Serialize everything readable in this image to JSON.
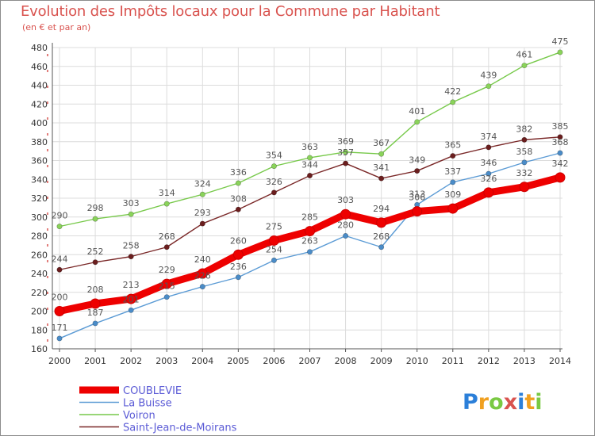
{
  "chart_data": {
    "type": "line",
    "title": "Evolution des Impôts locaux pour la Commune par Habitant",
    "subtitle": "(en € et par an)",
    "x": [
      "2000",
      "2001",
      "2002",
      "2003",
      "2004",
      "2005",
      "2006",
      "2007",
      "2008",
      "2009",
      "2010",
      "2011",
      "2012",
      "2013",
      "2014"
    ],
    "ylim": [
      160,
      480
    ],
    "yticks": [
      160,
      180,
      200,
      220,
      240,
      260,
      280,
      300,
      320,
      340,
      360,
      380,
      400,
      420,
      440,
      460,
      480
    ],
    "grid": true,
    "legend_position": "bottom-left",
    "series": [
      {
        "name": "Voiron",
        "color": "#77c94a",
        "marker_color": "#8ad35a",
        "values": [
          290,
          298,
          303,
          314,
          324,
          336,
          354,
          363,
          369,
          367,
          401,
          422,
          439,
          461,
          475
        ]
      },
      {
        "name": "Saint-Jean-de-Moirans",
        "color": "#7a2828",
        "marker_color": "#6b1e1e",
        "values": [
          244,
          252,
          258,
          268,
          293,
          308,
          326,
          344,
          357,
          341,
          349,
          365,
          374,
          382,
          385
        ]
      },
      {
        "name": "La Buisse",
        "color": "#5b9bd5",
        "marker_color": "#4a8cc8",
        "values": [
          171,
          187,
          201,
          215,
          226,
          236,
          254,
          263,
          280,
          268,
          313,
          337,
          346,
          358,
          368
        ]
      },
      {
        "name": "COUBLEVIE",
        "color": "#ee0000",
        "marker_color": "#ee0000",
        "values": [
          200,
          208,
          213,
          229,
          240,
          260,
          275,
          285,
          303,
          294,
          306,
          309,
          326,
          332,
          342
        ]
      }
    ],
    "legend_order": [
      "COUBLEVIE",
      "La Buisse",
      "Voiron",
      "Saint-Jean-de-Moirans"
    ]
  },
  "logo": {
    "text": "Proxiti"
  }
}
